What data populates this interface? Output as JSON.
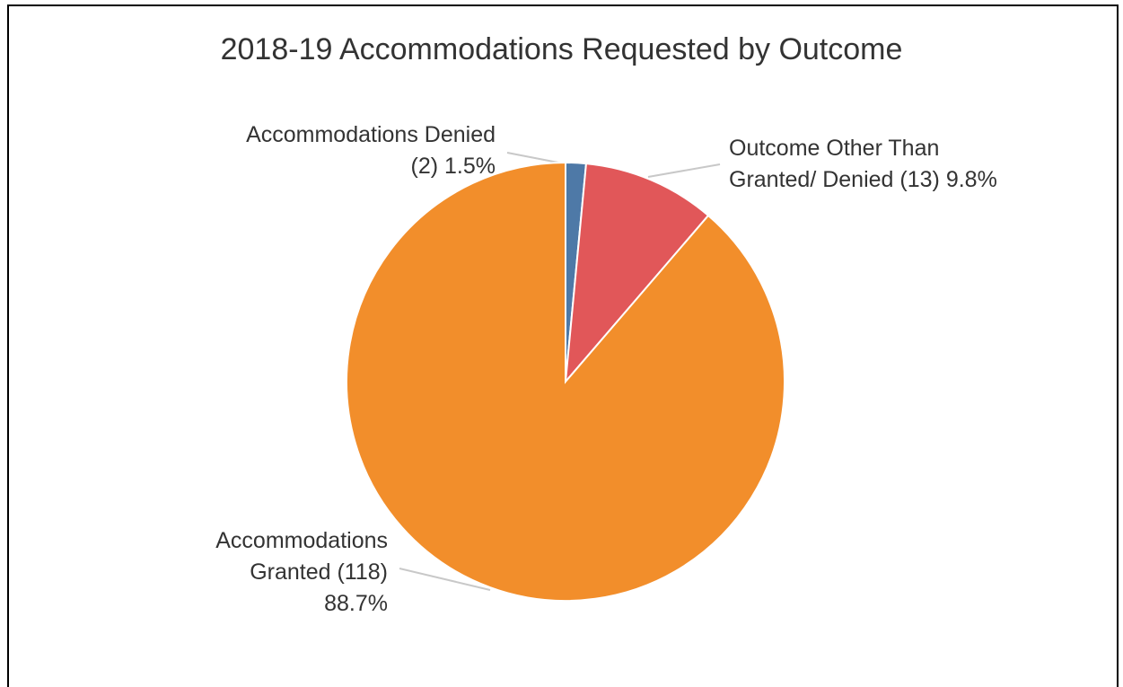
{
  "chart_data": {
    "type": "pie",
    "title": "2018-19 Accommodations Requested by Outcome",
    "categories": [
      "Accommodations Denied",
      "Outcome Other Than Granted/ Denied",
      "Accommodations Granted"
    ],
    "counts": [
      2,
      13,
      118
    ],
    "count_labels": [
      "(2)",
      "(13)",
      "(118)"
    ],
    "values": [
      1.5,
      9.8,
      88.7
    ],
    "value_labels": [
      "1.5%",
      "9.8%",
      "88.7%"
    ],
    "colors": [
      "#4e79a7",
      "#e15759",
      "#f28e2b"
    ]
  }
}
